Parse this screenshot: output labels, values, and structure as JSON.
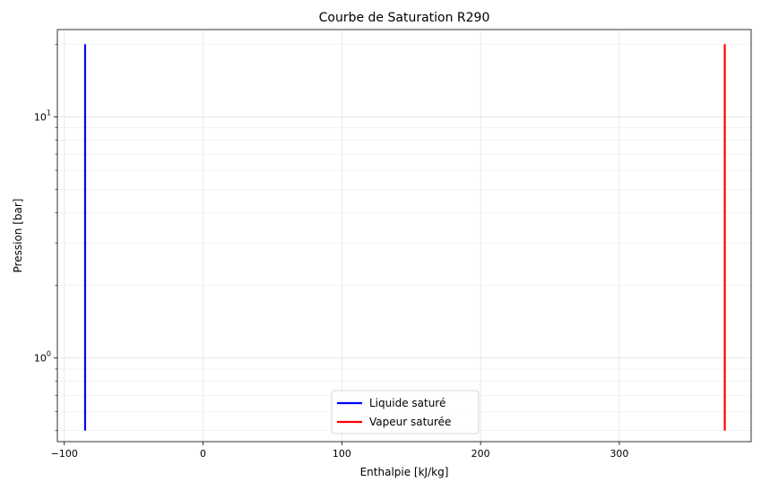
{
  "chart_data": {
    "type": "line",
    "title": "Courbe de Saturation R290",
    "xlabel": "Enthalpie [kJ/kg]",
    "ylabel": "Pression [bar]",
    "xlim": [
      -105,
      395
    ],
    "ylim": [
      0.45,
      23
    ],
    "yscale": "log",
    "grid": true,
    "legend_position": "bottom-center",
    "x_ticks": [
      {
        "value": -100,
        "label": "−100"
      },
      {
        "value": 0,
        "label": "0"
      },
      {
        "value": 100,
        "label": "100"
      },
      {
        "value": 200,
        "label": "200"
      },
      {
        "value": 300,
        "label": "300"
      }
    ],
    "y_major_ticks": [
      {
        "value": 1,
        "base": "10",
        "exp": "0"
      },
      {
        "value": 10,
        "base": "10",
        "exp": "1"
      }
    ],
    "y_minor_ticks": [
      0.5,
      0.6,
      0.7,
      0.8,
      0.9,
      2,
      3,
      4,
      5,
      6,
      7,
      8,
      9,
      20
    ],
    "series": [
      {
        "name": "Liquide saturé",
        "color": "#0000ff",
        "x": [
          -85,
          -85
        ],
        "y": [
          0.5,
          20
        ]
      },
      {
        "name": "Vapeur saturée",
        "color": "#ff0000",
        "x": [
          376,
          376
        ],
        "y": [
          0.5,
          20
        ]
      }
    ]
  }
}
